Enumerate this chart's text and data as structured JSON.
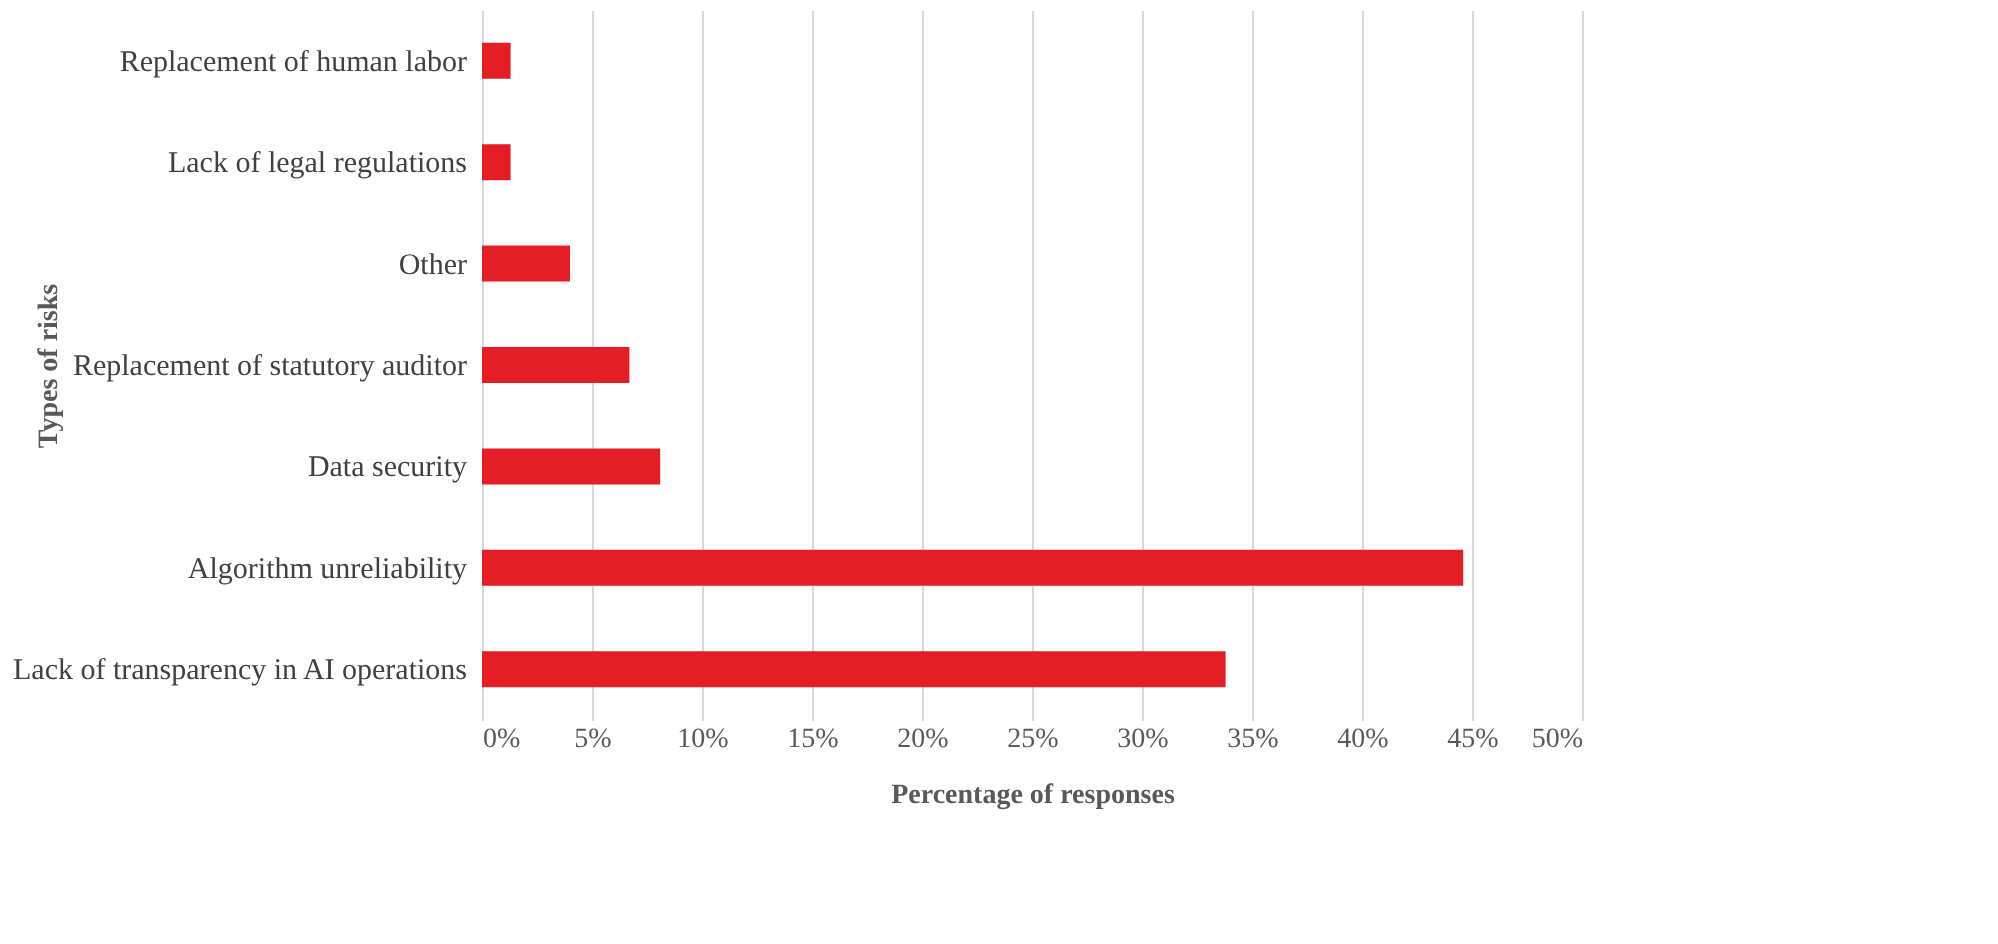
{
  "chart_data": {
    "type": "bar",
    "orientation": "horizontal",
    "xlabel": "Percentage of responses",
    "ylabel": "Types of risks",
    "categories": [
      "Replacement of human labor",
      "Lack of legal regulations",
      "Other",
      "Replacement of statutory auditor",
      "Data security",
      "Algorithm unreliability",
      "Lack of transparency in AI operations"
    ],
    "values": [
      1.3,
      1.3,
      4.0,
      6.7,
      8.1,
      44.6,
      33.8
    ],
    "color": "#e31e25",
    "xlim": [
      0,
      50
    ],
    "xticks": [
      {
        "value": 0,
        "label": "0%"
      },
      {
        "value": 5,
        "label": "5%"
      },
      {
        "value": 10,
        "label": "10%"
      },
      {
        "value": 15,
        "label": "15%"
      },
      {
        "value": 20,
        "label": "20%"
      },
      {
        "value": 25,
        "label": "25%"
      },
      {
        "value": 30,
        "label": "30%"
      },
      {
        "value": 35,
        "label": "35%"
      },
      {
        "value": 40,
        "label": "40%"
      },
      {
        "value": 45,
        "label": "45%"
      },
      {
        "value": 50,
        "label": "50%"
      }
    ],
    "grid": "x",
    "legend": false
  }
}
